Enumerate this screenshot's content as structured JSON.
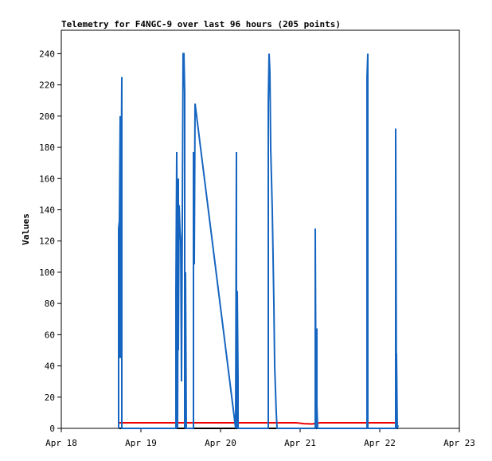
{
  "chart_data": {
    "type": "line",
    "title": "Telemetry for F4NGC-9 over last 96 hours (205 points)",
    "y_label": "Values",
    "xlim": [
      18,
      23
    ],
    "xticks": [
      {
        "value": 18,
        "label": "Apr 18"
      },
      {
        "value": 19,
        "label": "Apr 19"
      },
      {
        "value": 20,
        "label": "Apr 20"
      },
      {
        "value": 21,
        "label": "Apr 21"
      },
      {
        "value": 22,
        "label": "Apr 22"
      },
      {
        "value": 23,
        "label": "Apr 23"
      }
    ],
    "ylim": [
      0,
      255
    ],
    "yticks": [
      0,
      20,
      40,
      60,
      80,
      100,
      120,
      140,
      160,
      180,
      200,
      220,
      240
    ],
    "grid": false,
    "series": [
      {
        "color": "#000000",
        "x": [
          18.73,
          22.23
        ],
        "values": [
          0,
          0
        ]
      },
      {
        "color": "#ee0000",
        "x": [
          18.73,
          20.95,
          21.05,
          21.15,
          21.25,
          22.23
        ],
        "values": [
          3.6,
          3.6,
          3,
          2.8,
          3.6,
          3.6
        ]
      },
      {
        "color": "#1565c0",
        "x": [
          18.72,
          18.72,
          18.73,
          18.74,
          18.74,
          18.76,
          18.76,
          19.44,
          19.44,
          19.45,
          19.46,
          19.47,
          19.47,
          19.48,
          19.49,
          19.5,
          19.51,
          19.53,
          19.54,
          19.55,
          19.55,
          19.56,
          19.57,
          19.66,
          19.66,
          19.67,
          19.68,
          20.19,
          20.2,
          20.2,
          20.21,
          20.22,
          20.22,
          20.6,
          20.6,
          20.61,
          20.62,
          20.63,
          20.65,
          20.66,
          20.67,
          20.68,
          20.7,
          20.71,
          21.19,
          21.19,
          21.2,
          21.21,
          21.21,
          21.22,
          21.84,
          21.84,
          21.85,
          21.85,
          22.2,
          22.2,
          22.21,
          22.21,
          22.22,
          22.23
        ],
        "values": [
          0,
          128,
          133,
          200,
          45,
          225,
          0,
          0,
          88,
          177,
          0,
          160,
          50,
          143,
          128,
          120,
          30,
          240,
          240,
          215,
          0,
          100,
          0,
          0,
          177,
          105,
          208,
          0,
          177,
          0,
          88,
          32,
          0,
          0,
          208,
          240,
          228,
          180,
          140,
          110,
          80,
          40,
          10,
          0,
          0,
          128,
          0,
          64,
          15,
          0,
          0,
          225,
          240,
          0,
          0,
          192,
          0,
          48,
          0,
          2
        ]
      }
    ]
  }
}
